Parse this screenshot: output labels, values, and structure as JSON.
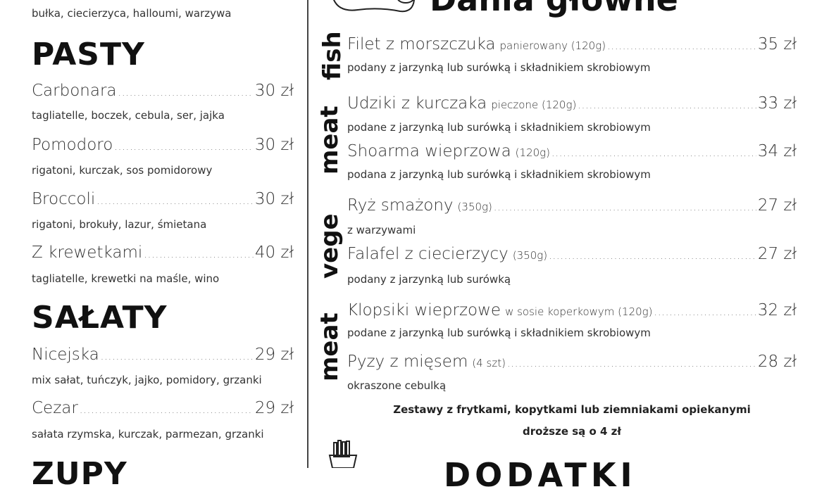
{
  "left": {
    "top_desc": "bułka, ciecierzyca, halloumi, warzywa",
    "pasty": {
      "heading": "PASTY",
      "items": [
        {
          "name": "Carbonara",
          "price": "30 zł",
          "desc": "tagliatelle, boczek, cebula, ser, jajka"
        },
        {
          "name": "Pomodoro",
          "price": "30 zł",
          "desc": "rigatoni, kurczak, sos pomidorowy"
        },
        {
          "name": "Broccoli",
          "price": "30 zł",
          "desc": "rigatoni, brokuły, lazur, śmietana"
        },
        {
          "name": "Z krewetkami",
          "price": "40 zł",
          "desc": "tagliatelle, krewetki na maśle, wino"
        }
      ]
    },
    "salaty": {
      "heading": "SAŁATY",
      "items": [
        {
          "name": "Nicejska",
          "price": "29 zł",
          "desc": "mix sałat, tuńczyk, jajko, pomidory, grzanki"
        },
        {
          "name": "Cezar",
          "price": "29 zł",
          "desc": "sałata rzymska, kurczak, parmezan, grzanki"
        }
      ]
    },
    "bottom_heading": "ZUPY"
  },
  "right": {
    "heading": "Dania główne",
    "categories": [
      "fish",
      "meat",
      "vege",
      "meat"
    ],
    "items": [
      {
        "name": "Filet z morszczuka",
        "sub": "panierowany (120g)",
        "price": "35 zł",
        "desc": "podany z jarzynką lub surówką i składnikiem skrobiowym"
      },
      {
        "name": "Udziki z kurczaka",
        "sub": "pieczone (120g)",
        "price": "33 zł",
        "desc": "podane z jarzynką lub surówką i składnikiem skrobiowym"
      },
      {
        "name": "Shoarma wieprzowa",
        "sub": "(120g)",
        "price": "34 zł",
        "desc": "podana z jarzynką lub surówką i składnikiem skrobiowym"
      },
      {
        "name": "Ryż smażony",
        "sub": "(350g)",
        "price": "27 zł",
        "desc": "z warzywami"
      },
      {
        "name": "Falafel z ciecierzycy",
        "sub": "(350g)",
        "price": "27 zł",
        "desc": "podany z jarzynką lub surówką"
      },
      {
        "name": "Klopsiki wieprzowe",
        "sub": "w sosie koperkowym (120g)",
        "price": "32 zł",
        "desc": "podane z jarzynką lub surówką i składnikiem skrobiowym"
      },
      {
        "name": "Pyzy z mięsem",
        "sub": "(4 szt)",
        "price": "28 zł",
        "desc": "okraszone cebulką"
      }
    ],
    "note_line1": "Zestawy z frytkami, kopytkami lub ziemniakami opiekanymi",
    "note_line2": "droższe są o 4 zł",
    "bottom_heading": "DODATKI"
  }
}
